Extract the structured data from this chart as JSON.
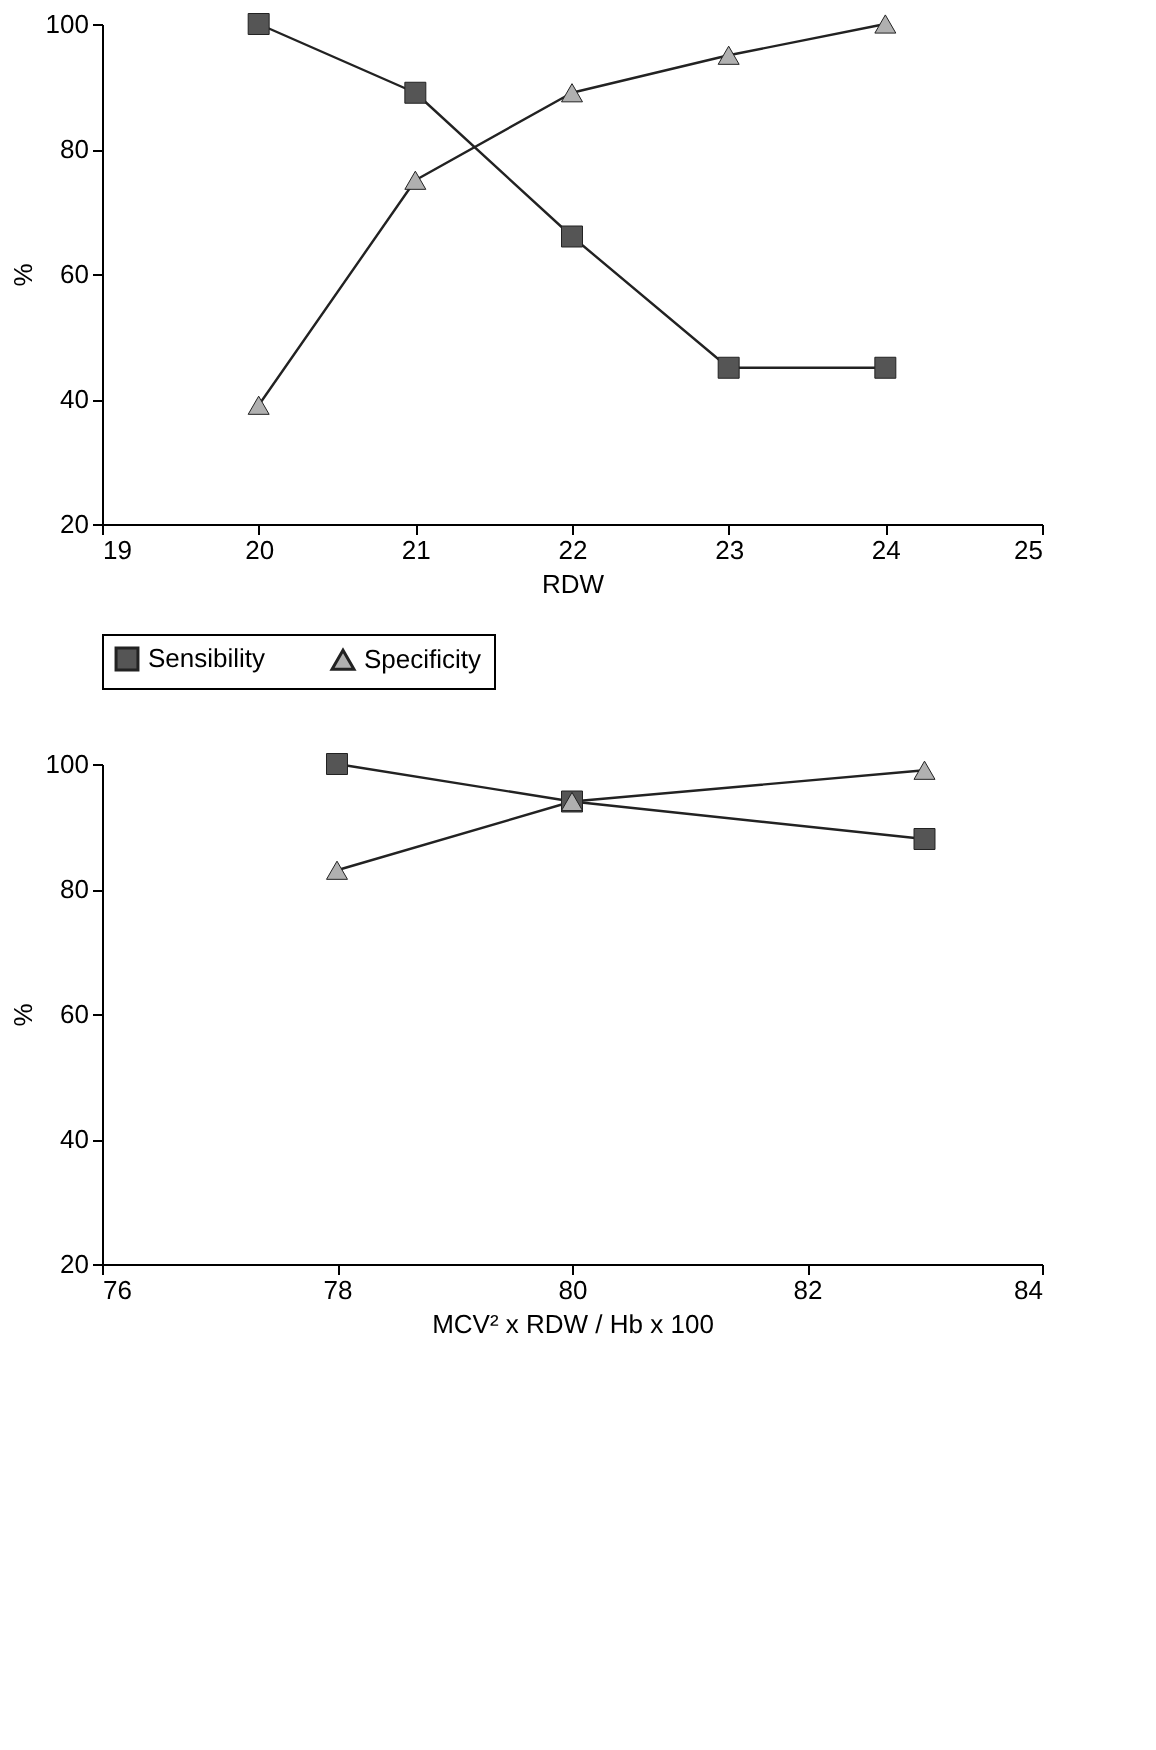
{
  "chart_data": [
    {
      "type": "line",
      "xlabel": "RDW",
      "ylabel": "%",
      "x": [
        20,
        21,
        22,
        23,
        24
      ],
      "xlim": [
        19,
        25
      ],
      "xticks": [
        19,
        20,
        21,
        22,
        23,
        24,
        25
      ],
      "ylim": [
        20,
        100
      ],
      "yticks": [
        20,
        40,
        60,
        80,
        100
      ],
      "grid": false,
      "legend": "bottom",
      "series": [
        {
          "name": "Sensibility",
          "color": "#555555",
          "marker": "square",
          "values": [
            100,
            89,
            66,
            45,
            45
          ]
        },
        {
          "name": "Specificity",
          "color": "#b0b0b0",
          "marker": "triangle",
          "values": [
            39,
            75,
            89,
            95,
            100
          ]
        }
      ]
    },
    {
      "type": "line",
      "xlabel": "MCV² x RDW / Hb x 100",
      "ylabel": "%",
      "x": [
        78,
        80,
        83
      ],
      "xlim": [
        76,
        84
      ],
      "xticks": [
        76,
        78,
        80,
        82,
        84
      ],
      "ylim": [
        20,
        100
      ],
      "yticks": [
        20,
        40,
        60,
        80,
        100
      ],
      "grid": false,
      "legend": false,
      "series": [
        {
          "color": "#555555",
          "marker": "square",
          "values": [
            100,
            94,
            88
          ]
        },
        {
          "color": "#b0b0b0",
          "marker": "triangle",
          "values": [
            83,
            94,
            99
          ]
        }
      ]
    }
  ]
}
